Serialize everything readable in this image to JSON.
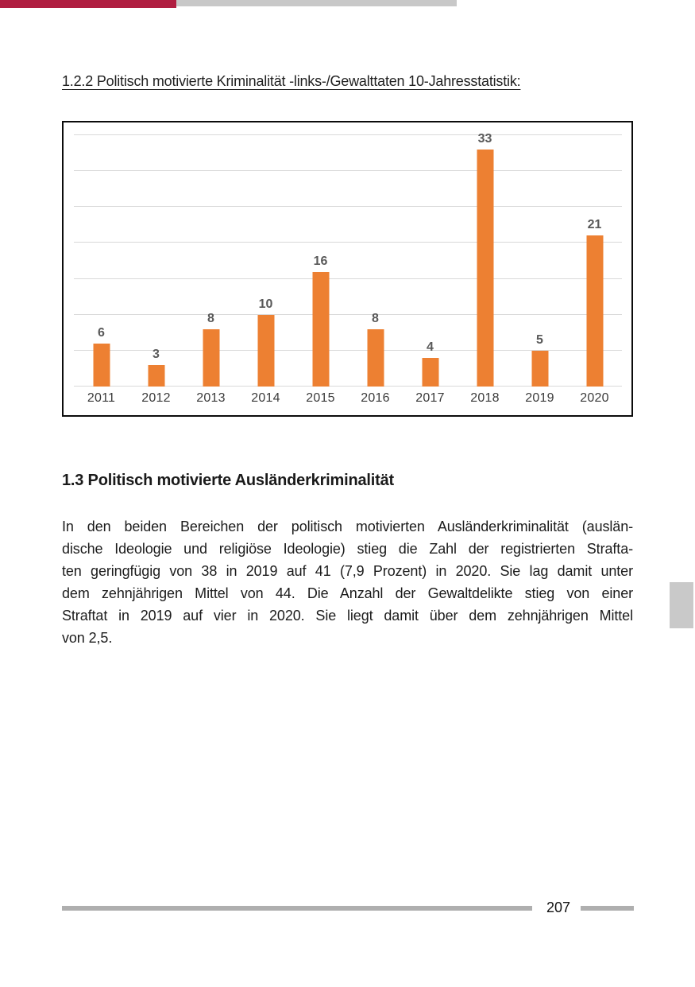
{
  "header": {
    "chapter_heading": "1.2.2 Politisch motivierte Kriminalität -links-/Gewalttaten 10-Jahresstatistik:"
  },
  "chart_data": {
    "type": "bar",
    "title": "",
    "xlabel": "",
    "ylabel": "",
    "categories": [
      "2011",
      "2012",
      "2013",
      "2014",
      "2015",
      "2016",
      "2017",
      "2018",
      "2019",
      "2020"
    ],
    "values": [
      6,
      3,
      8,
      10,
      16,
      8,
      4,
      33,
      5,
      21
    ],
    "ylim": [
      0,
      35
    ],
    "grid_step": 5,
    "grid": true,
    "legend": false,
    "data_labels": true,
    "bar_color": "#ED8032"
  },
  "section": {
    "heading": "1.3 Politisch motivierte Ausländerkriminalität",
    "paragraph_lines": [
      "In den beiden Bereichen der politisch motivierten Ausländerkriminalität (auslän-",
      "dische Ideologie und religiöse Ideologie) stieg die Zahl der registrierten Strafta-",
      "ten geringfügig von 38 in 2019 auf 41 (7,9 Prozent) in 2020. Sie lag damit unter",
      "dem zehnjährigen Mittel von 44. Die Anzahl der Gewaltdelikte stieg von einer",
      "Straftat in 2019 auf vier in 2020. Sie liegt damit über dem zehnjährigen Mittel",
      "von 2,5."
    ]
  },
  "footer": {
    "page_number": "207"
  },
  "colors": {
    "top_bar_gray": "#C8C8C8",
    "top_bar_red": "#B01E41",
    "chart_orange": "#ED8032",
    "gridline_gray": "#D9D9D9",
    "footer_gray": "#AFAFAF",
    "side_tab_gray": "#C9C9C9"
  }
}
